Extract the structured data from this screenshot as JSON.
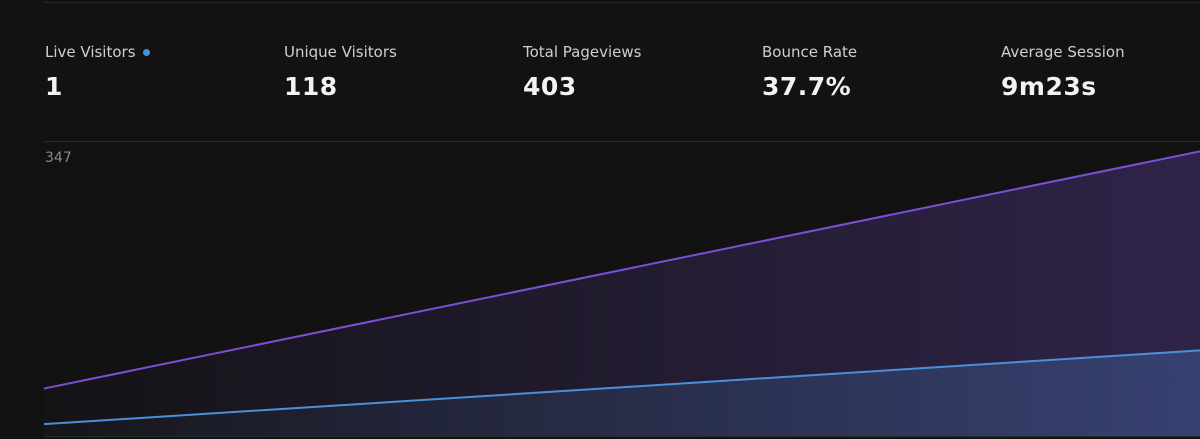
{
  "stats": [
    {
      "label": "Live Visitors",
      "value": "1",
      "live": true
    },
    {
      "label": "Unique Visitors",
      "value": "118"
    },
    {
      "label": "Total Pageviews",
      "value": "403"
    },
    {
      "label": "Bounce Rate",
      "value": "37.7%"
    },
    {
      "label": "Average Session",
      "value": "9m23s"
    }
  ],
  "colors": {
    "background": "#121212",
    "live_dot": "#4a90e2",
    "pageviews_line": "#7b4fd6",
    "visitors_line": "#4a8fd8"
  },
  "chart_data": {
    "type": "area",
    "ymax_label": "347",
    "ylim": [
      0,
      347
    ],
    "x": [
      0,
      1
    ],
    "series": [
      {
        "values": [
          56,
          336
        ],
        "color": "#7b4fd6"
      },
      {
        "values": [
          14,
          101
        ],
        "color": "#4a8fd8"
      }
    ],
    "grid": false
  }
}
